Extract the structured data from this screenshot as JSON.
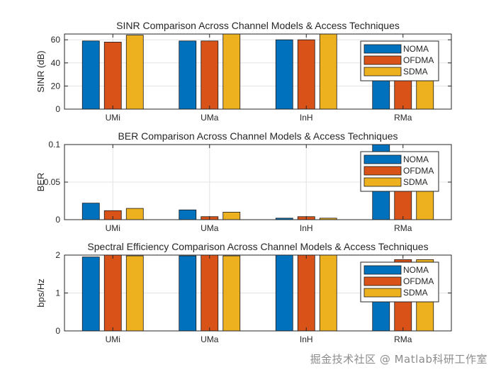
{
  "watermark": "掘金技术社区 @ Matlab科研工作室",
  "colors": {
    "NOMA": "#0072BD",
    "OFDMA": "#D95319",
    "SDMA": "#EDB120"
  },
  "chart_data": [
    {
      "type": "bar",
      "title": "SINR Comparison Across Channel Models & Access Techniques",
      "ylabel": "SINR (dB)",
      "xlabel": "",
      "ylim": [
        0,
        65
      ],
      "yticks": [
        0,
        20,
        40,
        60
      ],
      "yticklabels": [
        "0",
        "20",
        "40",
        "60"
      ],
      "categories": [
        "UMi",
        "UMa",
        "InH",
        "RMa"
      ],
      "series": [
        {
          "name": "NOMA",
          "values": [
            59,
            59,
            60,
            40
          ]
        },
        {
          "name": "OFDMA",
          "values": [
            58,
            59,
            60,
            40
          ]
        },
        {
          "name": "SDMA",
          "values": [
            64,
            65,
            66,
            40
          ]
        }
      ],
      "grid": true,
      "legend": "top-right"
    },
    {
      "type": "bar",
      "title": "BER Comparison Across Channel Models & Access Techniques",
      "ylabel": "BER",
      "xlabel": "",
      "ylim": [
        0,
        0.1
      ],
      "yticks": [
        0,
        0.05,
        0.1
      ],
      "yticklabels": [
        "0",
        "0.05",
        "0.1"
      ],
      "categories": [
        "UMi",
        "UMa",
        "InH",
        "RMa"
      ],
      "series": [
        {
          "name": "NOMA",
          "values": [
            0.022,
            0.013,
            0.002,
            0.1
          ]
        },
        {
          "name": "OFDMA",
          "values": [
            0.012,
            0.004,
            0.004,
            0.05
          ]
        },
        {
          "name": "SDMA",
          "values": [
            0.015,
            0.01,
            0.002,
            0.05
          ]
        }
      ],
      "grid": true,
      "legend": "top-right"
    },
    {
      "type": "bar",
      "title": "Spectral Efficiency Comparison Across Channel Models & Access Techniques",
      "ylabel": "bps/Hz",
      "xlabel": "",
      "ylim": [
        0,
        2
      ],
      "yticks": [
        0,
        1,
        2
      ],
      "yticklabels": [
        "0",
        "1",
        "2"
      ],
      "categories": [
        "UMi",
        "UMa",
        "InH",
        "RMa"
      ],
      "series": [
        {
          "name": "NOMA",
          "values": [
            1.95,
            1.98,
            2.0,
            1.0
          ]
        },
        {
          "name": "OFDMA",
          "values": [
            2.0,
            2.0,
            2.0,
            1.88
          ]
        },
        {
          "name": "SDMA",
          "values": [
            1.98,
            1.98,
            2.0,
            1.88
          ]
        }
      ],
      "grid": true,
      "legend": "top-right"
    }
  ]
}
